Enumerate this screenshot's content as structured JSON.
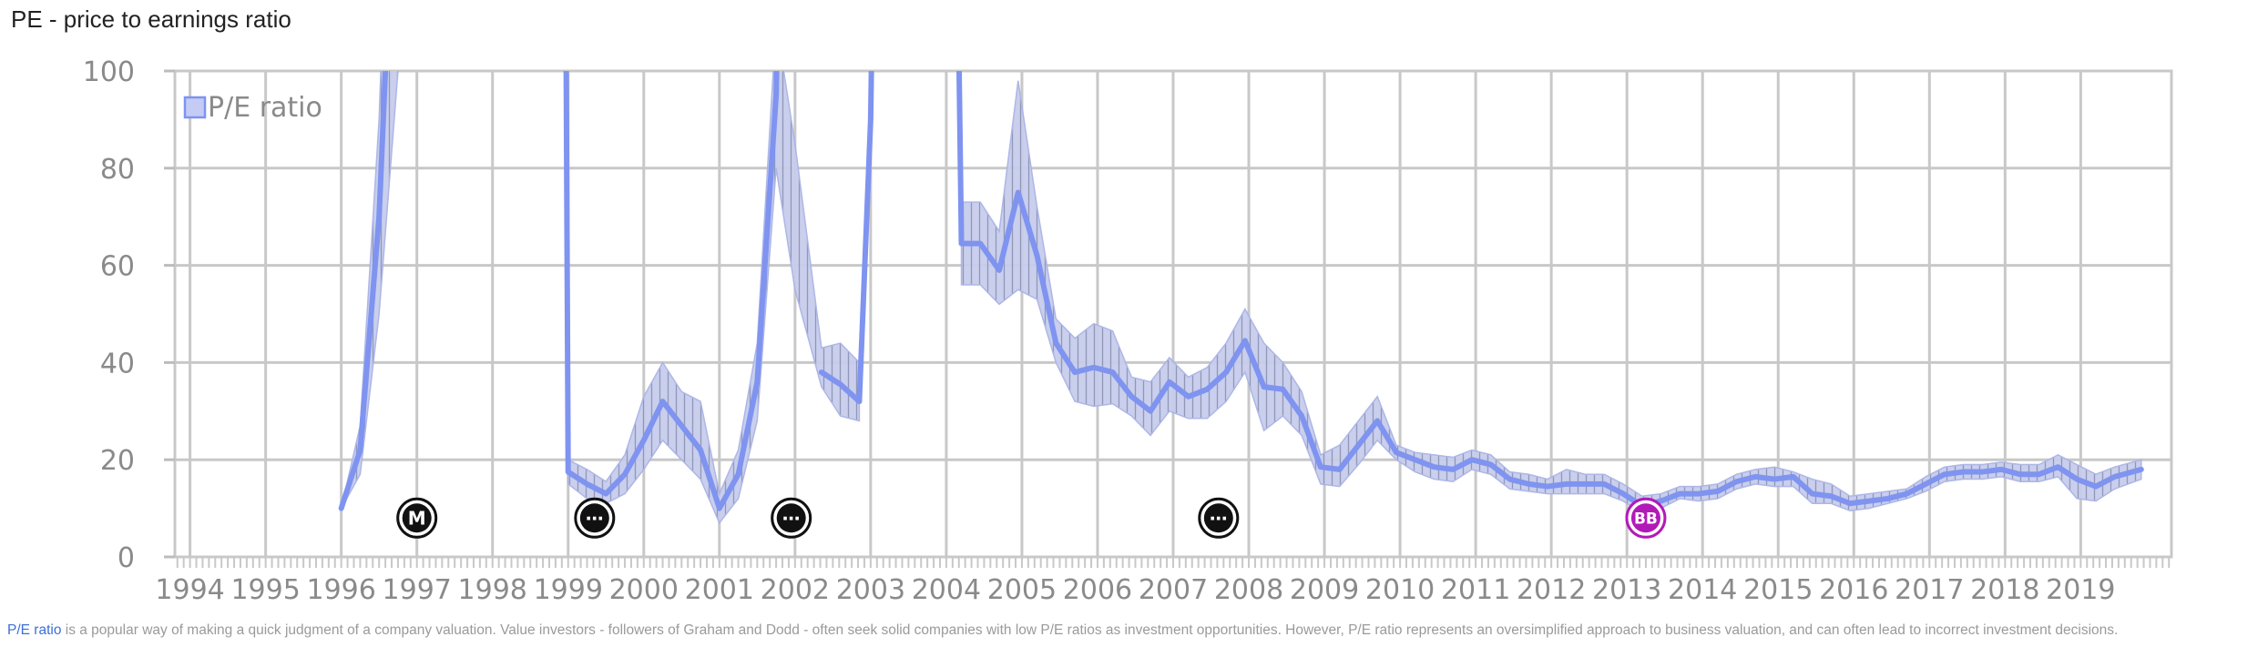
{
  "chart_data": {
    "type": "line",
    "title": "PE - price to earnings ratio",
    "xlabel": "",
    "ylabel": "",
    "xlim": [
      1993.8,
      2020.2
    ],
    "ylim": [
      0,
      100
    ],
    "y_ticks": [
      0,
      20,
      40,
      60,
      80,
      100
    ],
    "x_ticks": [
      1994,
      1995,
      1996,
      1997,
      1998,
      1999,
      2000,
      2001,
      2002,
      2003,
      2004,
      2005,
      2006,
      2007,
      2008,
      2009,
      2010,
      2011,
      2012,
      2013,
      2014,
      2015,
      2016,
      2017,
      2018,
      2019
    ],
    "grid": true,
    "legend": {
      "position": "top-left",
      "entries": [
        "P/E ratio"
      ]
    },
    "series_color": "#7f93f0",
    "band_color": "#9aa8e6",
    "series": [
      {
        "name": "P/E ratio",
        "segments": [
          {
            "x": [
              1996.0,
              1996.25,
              1996.5,
              1996.75,
              1997.0
            ],
            "y": [
              10,
              22,
              70,
              160,
              300
            ]
          },
          {
            "x": [
              1998.85,
              1999.0,
              1999.25,
              1999.5,
              1999.75,
              2000.0,
              2000.25,
              2000.5,
              2000.75,
              2001.0,
              2001.25,
              2001.5,
              2001.75,
              2002.0
            ],
            "y": [
              500,
              17.5,
              15,
              13,
              17,
              24,
              32,
              27,
              22,
              10,
              17,
              36,
              95,
              300
            ]
          },
          {
            "x": [
              2002.35,
              2002.6,
              2002.85,
              2003.0,
              2003.2
            ],
            "y": [
              38,
              35.5,
              32,
              90,
              300
            ]
          },
          {
            "x": [
              2004.0,
              2004.2,
              2004.45,
              2004.7,
              2004.95,
              2005.2,
              2005.45,
              2005.7,
              2005.95,
              2006.2,
              2006.45,
              2006.7,
              2006.95,
              2007.2,
              2007.45,
              2007.7,
              2007.95,
              2008.2,
              2008.45,
              2008.7,
              2008.95,
              2009.2,
              2009.45,
              2009.7,
              2009.95,
              2010.2,
              2010.45,
              2010.7,
              2010.95,
              2011.2,
              2011.45,
              2011.7,
              2011.95,
              2012.2,
              2012.45,
              2012.7,
              2012.95,
              2013.2,
              2013.45,
              2013.7,
              2013.95,
              2014.2,
              2014.45,
              2014.7,
              2014.95,
              2015.2,
              2015.45,
              2015.7,
              2015.95,
              2016.2,
              2016.45,
              2016.7,
              2016.95,
              2017.2,
              2017.45,
              2017.7,
              2017.95,
              2018.2,
              2018.45,
              2018.7,
              2018.95,
              2019.2,
              2019.45,
              2019.8
            ],
            "y": [
              300,
              64.5,
              64.5,
              59,
              75,
              62,
              44,
              38,
              39,
              38,
              33,
              30,
              36,
              33,
              34.5,
              38,
              44.5,
              35,
              34.5,
              29,
              18.5,
              18,
              23,
              28,
              21.5,
              20,
              18.5,
              18,
              20,
              19,
              16,
              15,
              14.5,
              15,
              15,
              15,
              13,
              10.5,
              11.5,
              13,
              13,
              13.5,
              15.5,
              16.5,
              16,
              16.5,
              13,
              12.5,
              11,
              11.5,
              12,
              13,
              15,
              17,
              17.5,
              17.5,
              18,
              17,
              17,
              18.5,
              16,
              14.5,
              16.5,
              18
            ]
          }
        ]
      }
    ],
    "band": {
      "x": [
        1996.0,
        1996.25,
        1996.5,
        1996.75,
        1997.0,
        1999.0,
        1999.25,
        1999.5,
        1999.75,
        2000.0,
        2000.25,
        2000.5,
        2000.75,
        2001.0,
        2001.25,
        2001.5,
        2001.75,
        2002.0,
        2002.35,
        2002.6,
        2002.85,
        2004.2,
        2004.45,
        2004.7,
        2004.95,
        2005.2,
        2005.45,
        2005.7,
        2005.95,
        2006.2,
        2006.45,
        2006.7,
        2006.95,
        2007.2,
        2007.45,
        2007.7,
        2007.95,
        2008.2,
        2008.45,
        2008.7,
        2008.95,
        2009.2,
        2009.45,
        2009.7,
        2009.95,
        2010.2,
        2010.45,
        2010.7,
        2010.95,
        2011.2,
        2011.45,
        2011.7,
        2011.95,
        2012.2,
        2012.45,
        2012.7,
        2012.95,
        2013.2,
        2013.45,
        2013.7,
        2013.95,
        2014.2,
        2014.45,
        2014.7,
        2014.95,
        2015.2,
        2015.45,
        2015.7,
        2015.95,
        2016.2,
        2016.45,
        2016.7,
        2016.95,
        2017.2,
        2017.45,
        2017.7,
        2017.95,
        2018.2,
        2018.45,
        2018.7,
        2018.95,
        2019.2,
        2019.45,
        2019.8
      ],
      "low": [
        10,
        17,
        50,
        100,
        200,
        15,
        12,
        11,
        13,
        18,
        24,
        20,
        16,
        7,
        12,
        28,
        80,
        55,
        35,
        29,
        28,
        56,
        56,
        52,
        55,
        53,
        40,
        32,
        31,
        31.5,
        29,
        25,
        30,
        28.5,
        28.5,
        32,
        38,
        26,
        29,
        25,
        15,
        14.5,
        19,
        24,
        20,
        17.5,
        16,
        15.5,
        18,
        17,
        14,
        13.5,
        13,
        13,
        13,
        13,
        11.5,
        9,
        10,
        12,
        11.5,
        12,
        14,
        15,
        14.5,
        14.5,
        11,
        11,
        9.5,
        10,
        11,
        12,
        13.5,
        15.5,
        16,
        16,
        16.5,
        15.5,
        15.5,
        16.5,
        12,
        11.5,
        14,
        16
      ],
      "high": [
        10,
        27,
        90,
        200,
        300,
        20,
        18,
        15.5,
        21,
        33,
        40,
        34,
        32,
        13,
        22,
        44,
        110,
        85,
        43,
        44,
        40,
        73,
        73,
        67,
        98,
        72,
        49,
        45,
        48,
        46.5,
        37,
        36,
        41,
        37,
        39,
        44,
        51,
        44,
        40,
        34,
        21,
        23,
        28,
        33,
        23,
        21.5,
        21,
        20.5,
        22,
        21,
        17.5,
        17,
        16,
        18,
        17,
        17,
        15,
        12.5,
        13,
        14.5,
        14.5,
        15,
        17,
        18,
        18.5,
        17.5,
        16,
        15,
        12.5,
        13,
        13.5,
        14,
        16.5,
        18.5,
        19,
        19,
        19.5,
        19,
        19,
        21,
        19,
        17,
        18.5,
        20
      ]
    },
    "markers": [
      {
        "label": "M",
        "x": 1997.0,
        "y": 8,
        "color": "#111111"
      },
      {
        "label": "⋯",
        "x": 1999.35,
        "y": 8,
        "color": "#111111"
      },
      {
        "label": "⋯",
        "x": 2001.95,
        "y": 8,
        "color": "#111111"
      },
      {
        "label": "⋯",
        "x": 2007.6,
        "y": 8,
        "color": "#111111"
      },
      {
        "label": "BB",
        "x": 2013.25,
        "y": 8,
        "color": "#b21ab8"
      }
    ]
  },
  "footer": {
    "link_text": "P/E ratio",
    "text": " is a popular way of making a quick judgment of a company valuation. Value investors - followers of Graham and Dodd - often seek solid companies with low P/E ratios as investment opportunities. However, P/E ratio represents an oversimplified approach to business valuation, and can often lead to incorrect investment decisions."
  }
}
